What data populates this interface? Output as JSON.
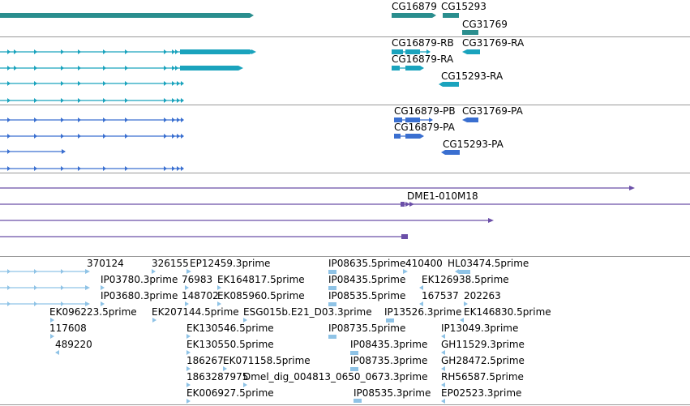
{
  "colors": {
    "gene": "#2a8e8e",
    "transcript": "#1aa3bd",
    "protein": "#3a6fd0",
    "clone": "#6b4fa8",
    "est": "#8fc3e6",
    "divider": "#9a9a9a"
  },
  "tracks": [
    {
      "name": "gene-track",
      "labels": [
        "CG16879",
        "CG15293",
        "CG31769"
      ]
    },
    {
      "name": "transcript-track",
      "labels": [
        "CG16879-RB",
        "CG31769-RA",
        "CG16879-RA",
        "CG15293-RA"
      ]
    },
    {
      "name": "protein-track",
      "labels": [
        "CG16879-PB",
        "CG31769-PA",
        "CG16879-PA",
        "CG15293-PA"
      ]
    },
    {
      "name": "clone-track",
      "labels": [
        "DME1-010M18"
      ]
    },
    {
      "name": "est-track",
      "labels": [
        "370124",
        "326155",
        "EP12459.3prime",
        "IP08635.5prime",
        "410400",
        "HL03474.5prime",
        "IP03780.3prime",
        "76983",
        "EK164817.5prime",
        "IP08435.5prime",
        "EK126938.5prime",
        "IP03680.3prime",
        "148702",
        "EK085960.5prime",
        "IP08535.5prime",
        "167537",
        "202263",
        "EK096223.5prime",
        "EK207144.5prime",
        "ESG015b.E21_D03.3prime",
        "IP13526.3prime",
        "EK146830.5prime",
        "117608",
        "EK130546.5prime",
        "IP08735.5prime",
        "IP13049.3prime",
        "489220",
        "EK130550.5prime",
        "IP08435.3prime",
        "GH11529.3prime",
        "186267",
        "EK071158.5prime",
        "IP08735.3prime",
        "GH28472.5prime",
        "1863287975",
        "Dmel_dig_004813_0650_0673.3prime",
        "RH56587.5prime",
        "EK006927.5prime",
        "IP08535.3prime",
        "EP02523.3prime"
      ]
    }
  ]
}
